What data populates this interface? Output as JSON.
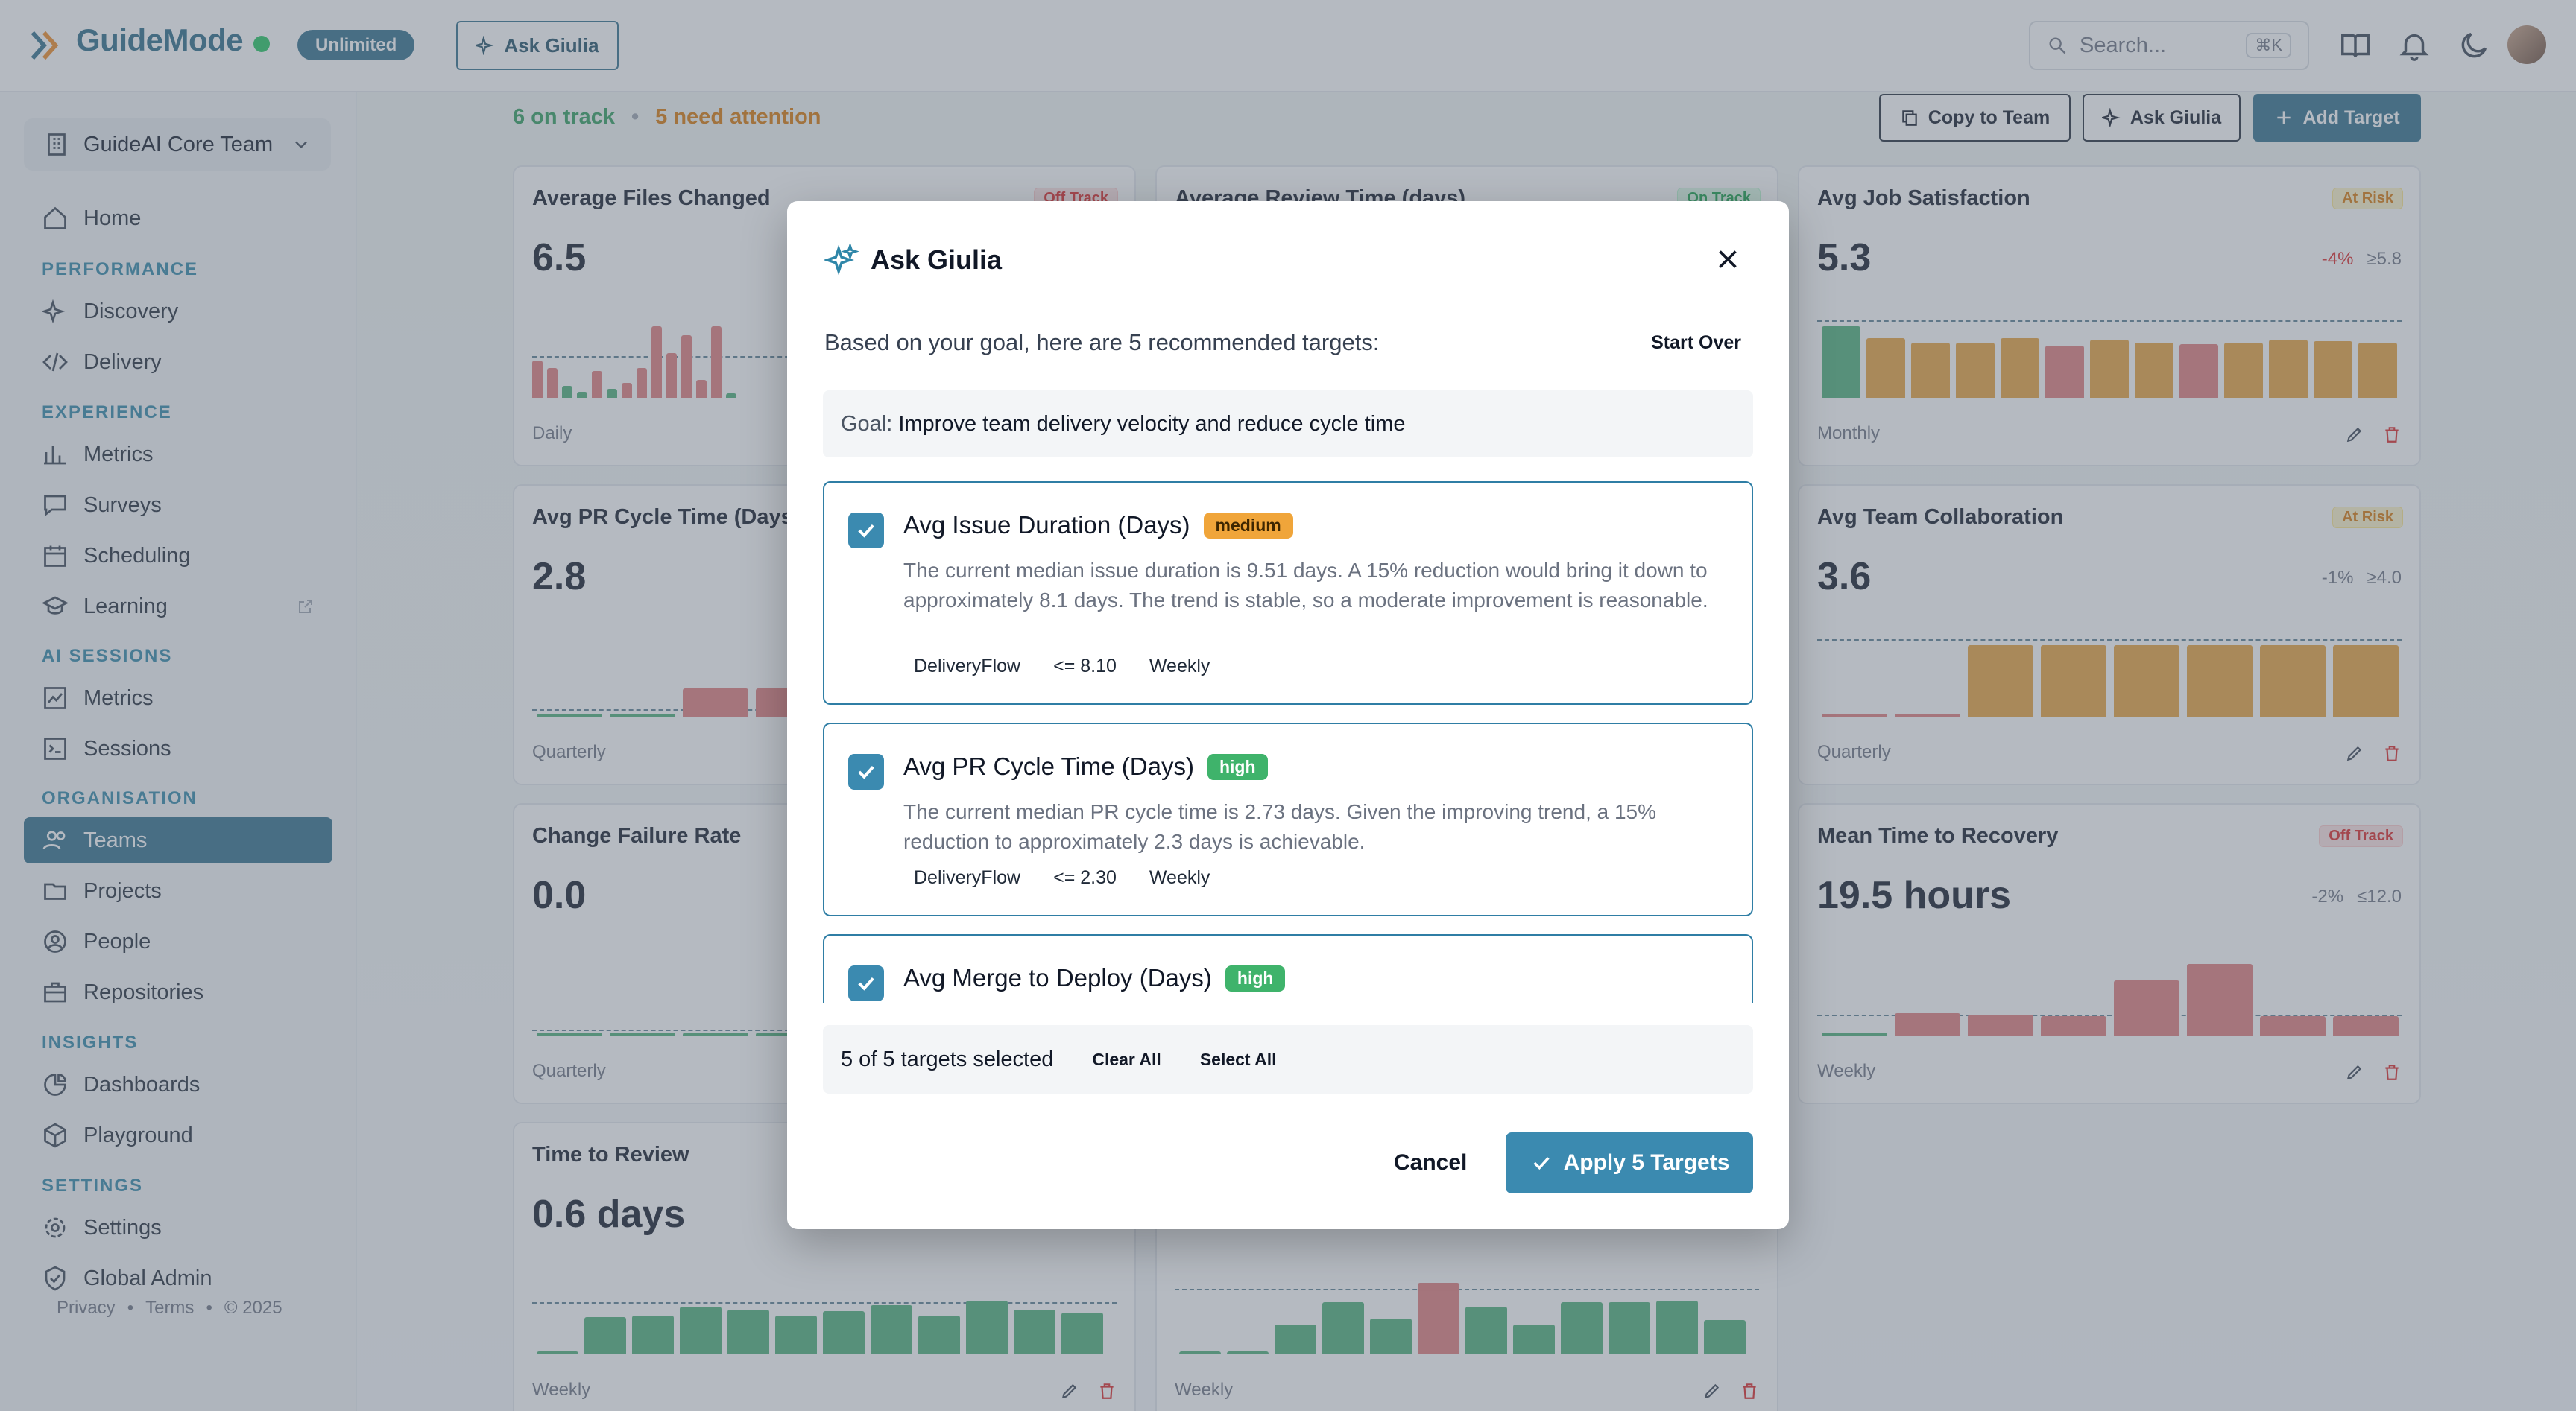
{
  "app": {
    "brand": "GuideMode",
    "plan_badge": "Unlimited",
    "ask_button": "Ask Giulia",
    "search_placeholder": "Search...",
    "search_shortcut": "⌘K"
  },
  "sidebar": {
    "team": "GuideAI Core Team",
    "home": "Home",
    "sections": {
      "performance": "PERFORMANCE",
      "experience": "EXPERIENCE",
      "ai_sessions": "AI SESSIONS",
      "organisation": "ORGANISATION",
      "insights": "INSIGHTS",
      "settings": "SETTINGS"
    },
    "items": {
      "discovery": "Discovery",
      "delivery": "Delivery",
      "metrics": "Metrics",
      "surveys": "Surveys",
      "scheduling": "Scheduling",
      "learning": "Learning",
      "ai_metrics": "Metrics",
      "sessions": "Sessions",
      "teams": "Teams",
      "projects": "Projects",
      "people": "People",
      "repositories": "Repositories",
      "dashboards": "Dashboards",
      "playground": "Playground",
      "settings": "Settings",
      "global_admin": "Global Admin"
    },
    "footer": {
      "privacy": "Privacy",
      "terms": "Terms",
      "copyright": "© 2025",
      "sep": "•"
    }
  },
  "main": {
    "on_track": "6 on track",
    "dot": "•",
    "attention": "5 need attention",
    "copy_to_team": "Copy to Team",
    "ask_giulia": "Ask Giulia",
    "add_target": "Add Target",
    "cards": [
      {
        "title": "Average Files Changed",
        "badge": "Off Track",
        "value": "6.5",
        "period": "Daily"
      },
      {
        "title": "Average Review Time (days)",
        "badge": "On Track"
      },
      {
        "title": "Avg Job Satisfaction",
        "badge": "At Risk",
        "value": "5.3",
        "trend": "-4%",
        "target": "≥5.8",
        "period": "Monthly"
      },
      {
        "title": "Avg PR Cycle Time (Days)",
        "value": "2.8",
        "period": "Quarterly"
      },
      {
        "title": "Avg Team Collaboration",
        "badge": "At Risk",
        "value": "3.6",
        "trend": "-1%",
        "target": "≥4.0",
        "period": "Quarterly"
      },
      {
        "title": "Change Failure Rate",
        "value": "0.0",
        "period": "Quarterly"
      },
      {
        "title": "Mean Time to Recovery",
        "badge": "Off Track",
        "value": "19.5 hours",
        "trend": "-2%",
        "target": "≤12.0",
        "period": "Weekly"
      },
      {
        "title": "Time to Review",
        "value": "0.6 days",
        "period": "Weekly"
      },
      {
        "period": "Weekly"
      }
    ]
  },
  "modal": {
    "title": "Ask Giulia",
    "subtitle": "Based on your goal, here are 5 recommended targets:",
    "start_over": "Start Over",
    "goal_label": "Goal:",
    "goal_text": "Improve team delivery velocity and reduce cycle time",
    "recs": [
      {
        "title": "Avg Issue Duration (Days)",
        "priority": "medium",
        "desc": "The current median issue duration is 9.51 days. A 15% reduction would bring it down to approximately 8.1 days. The trend is stable, so a moderate improvement is reasonable.",
        "source": "DeliveryFlow",
        "target": "<= 8.10",
        "cadence": "Weekly"
      },
      {
        "title": "Avg PR Cycle Time (Days)",
        "priority": "high",
        "desc": "The current median PR cycle time is 2.73 days. Given the improving trend, a 15% reduction to approximately 2.3 days is achievable.",
        "source": "DeliveryFlow",
        "target": "<= 2.30",
        "cadence": "Weekly"
      },
      {
        "title": "Avg Merge to Deploy (Days)",
        "priority": "high"
      }
    ],
    "selected_text": "5 of 5 targets selected",
    "clear_all": "Clear All",
    "select_all": "Select All",
    "cancel": "Cancel",
    "apply": "Apply 5 Targets"
  }
}
